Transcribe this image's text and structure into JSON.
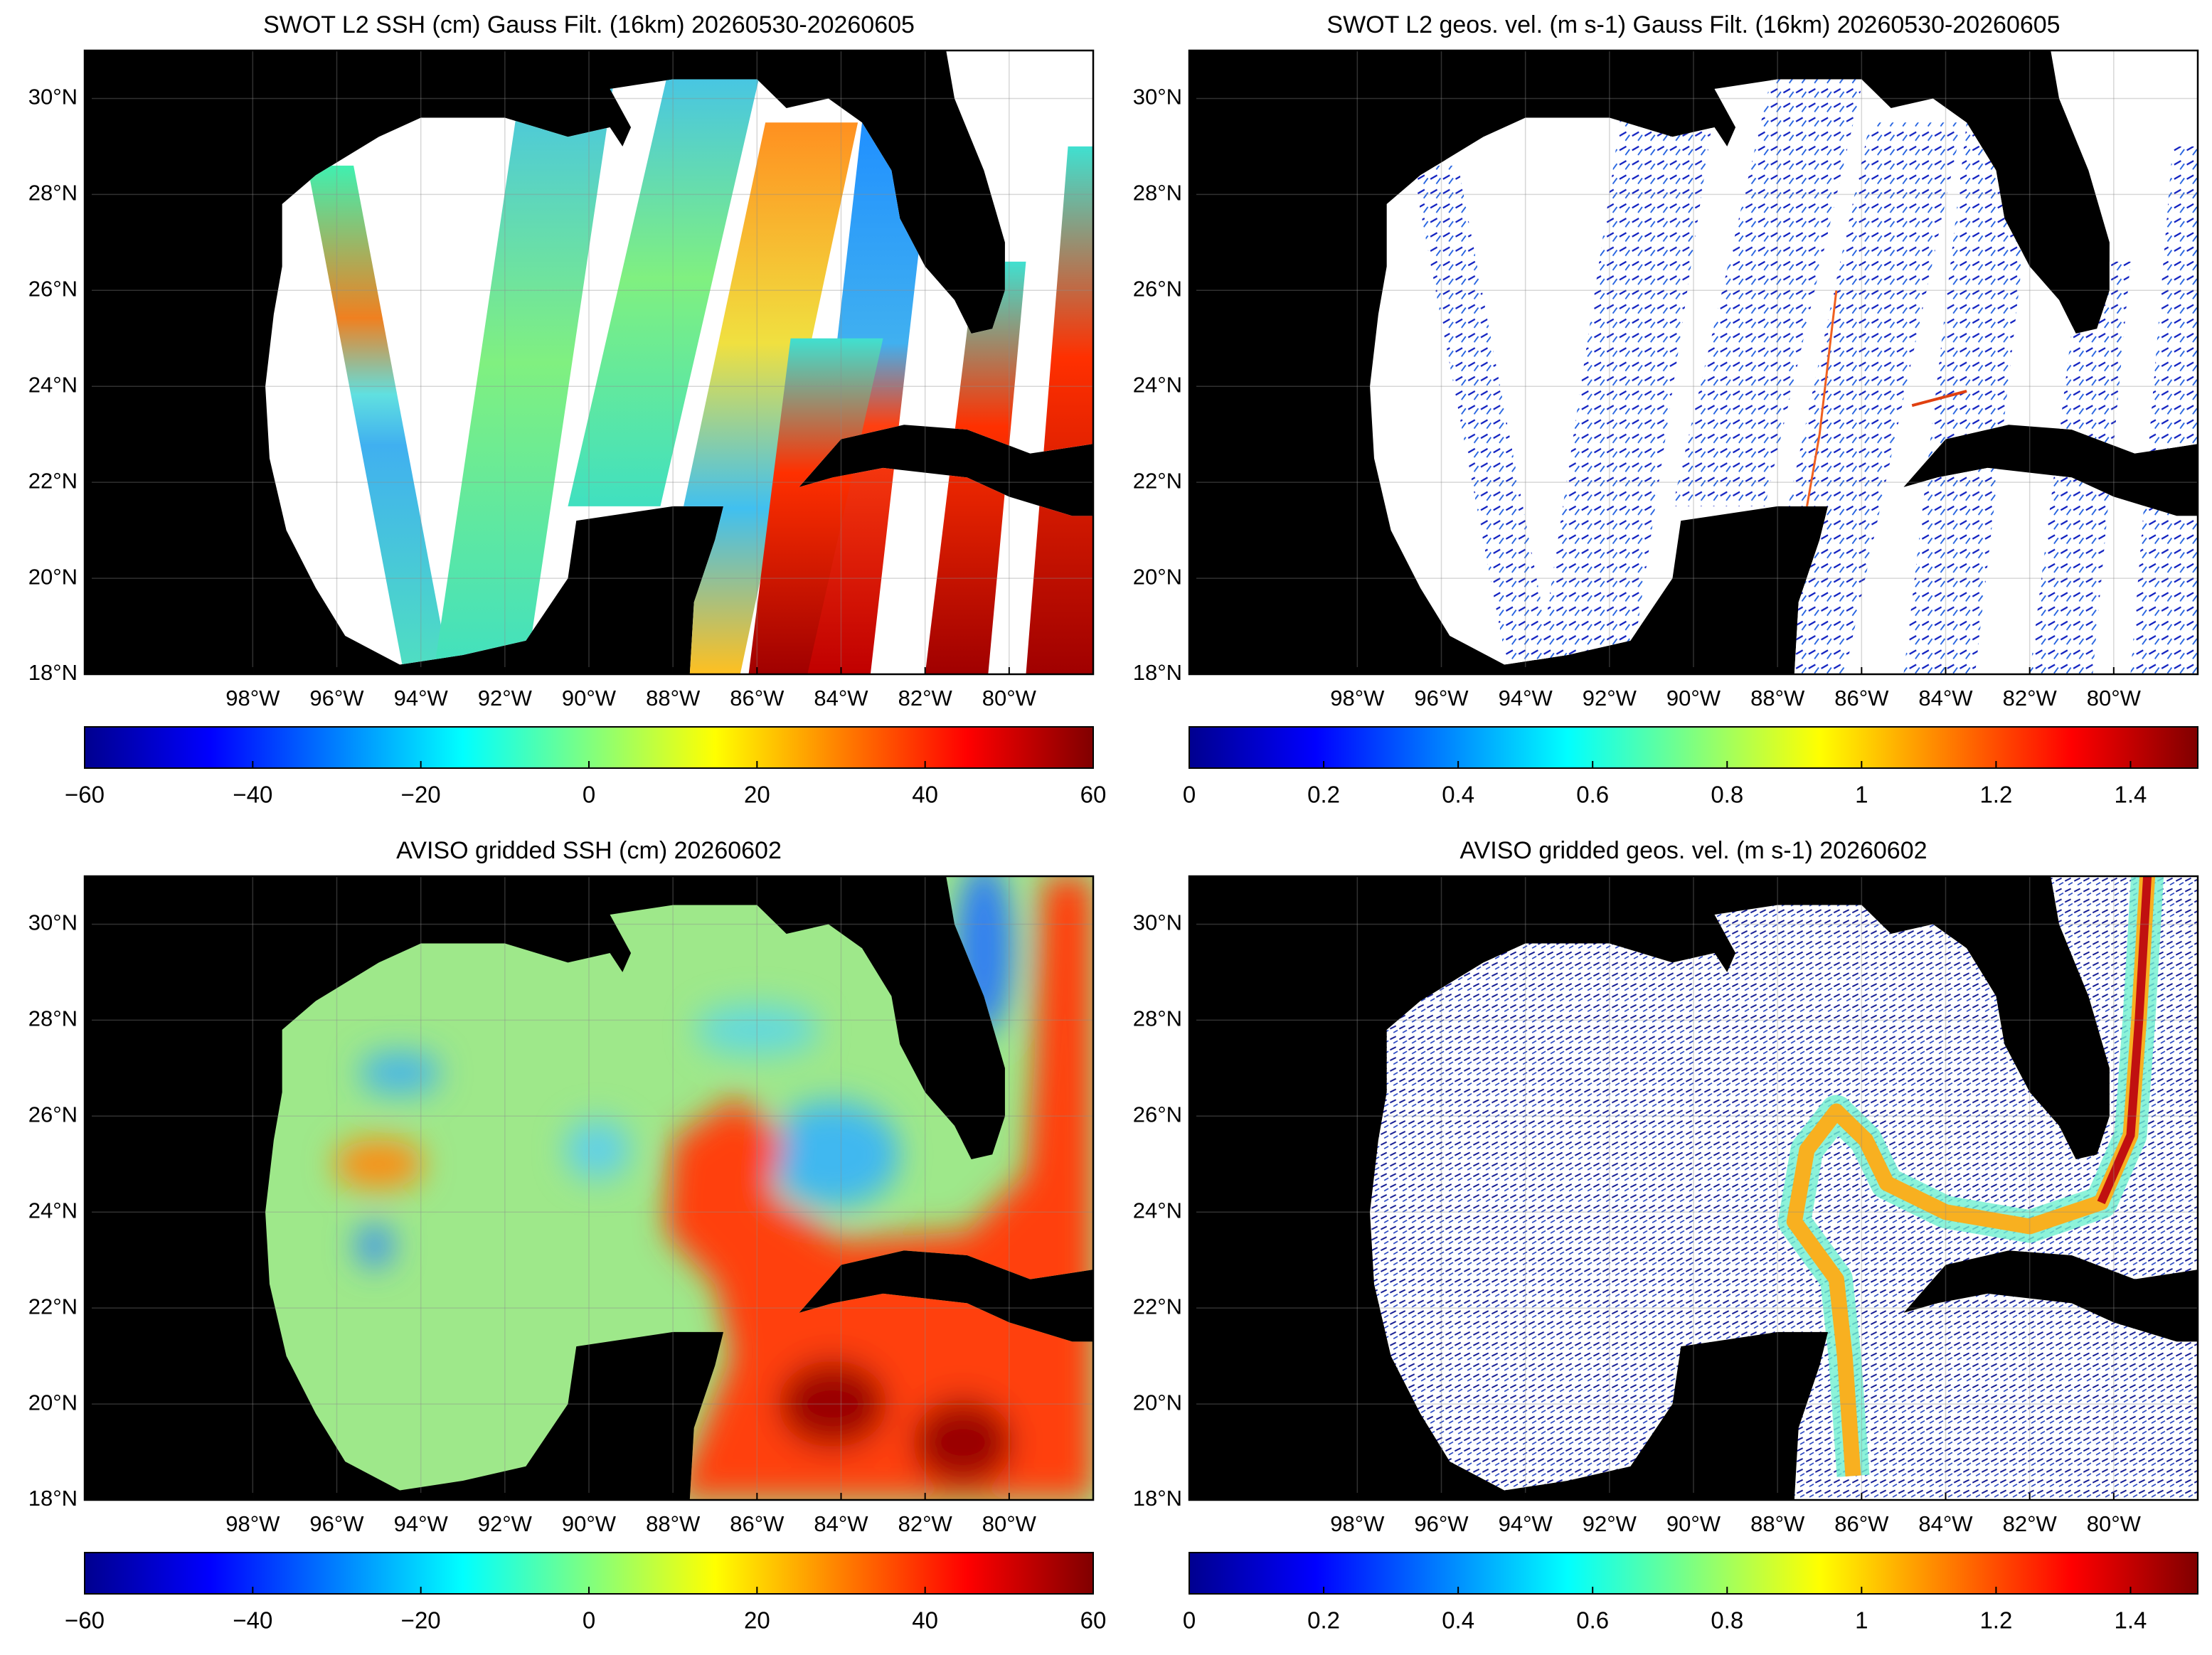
{
  "panels": [
    {
      "title": "SWOT L2 SSH (cm) Gauss Filt. (16km) 20260530-20260605",
      "xlim": [
        -102,
        -78
      ],
      "ylim": [
        18,
        31
      ],
      "xticks": [
        {
          "value": -98,
          "label": "98°W"
        },
        {
          "value": -96,
          "label": "96°W"
        },
        {
          "value": -94,
          "label": "94°W"
        },
        {
          "value": -92,
          "label": "92°W"
        },
        {
          "value": -90,
          "label": "90°W"
        },
        {
          "value": -88,
          "label": "88°W"
        },
        {
          "value": -86,
          "label": "86°W"
        },
        {
          "value": -84,
          "label": "84°W"
        },
        {
          "value": -82,
          "label": "82°W"
        },
        {
          "value": -80,
          "label": "80°W"
        }
      ],
      "yticks": [
        {
          "value": 18,
          "label": "18°N"
        },
        {
          "value": 20,
          "label": "20°N"
        },
        {
          "value": 22,
          "label": "22°N"
        },
        {
          "value": 24,
          "label": "24°N"
        },
        {
          "value": 26,
          "label": "26°N"
        },
        {
          "value": 28,
          "label": "28°N"
        },
        {
          "value": 30,
          "label": "30°N"
        }
      ],
      "colorbar": {
        "lim": [
          -60,
          60
        ],
        "ticks": [
          {
            "value": -60,
            "label": "−60"
          },
          {
            "value": -40,
            "label": "−40"
          },
          {
            "value": -20,
            "label": "−20"
          },
          0,
          20,
          40,
          60
        ]
      }
    },
    {
      "title": "SWOT L2 geos. vel. (m s-1) Gauss Filt. (16km) 20260530-20260605",
      "xlim": [
        -102,
        -78
      ],
      "ylim": [
        18,
        31
      ],
      "xticks": [
        {
          "value": -98,
          "label": "98°W"
        },
        {
          "value": -96,
          "label": "96°W"
        },
        {
          "value": -94,
          "label": "94°W"
        },
        {
          "value": -92,
          "label": "92°W"
        },
        {
          "value": -90,
          "label": "90°W"
        },
        {
          "value": -88,
          "label": "88°W"
        },
        {
          "value": -86,
          "label": "86°W"
        },
        {
          "value": -84,
          "label": "84°W"
        },
        {
          "value": -82,
          "label": "82°W"
        },
        {
          "value": -80,
          "label": "80°W"
        }
      ],
      "yticks": [
        {
          "value": 18,
          "label": "18°N"
        },
        {
          "value": 20,
          "label": "20°N"
        },
        {
          "value": 22,
          "label": "22°N"
        },
        {
          "value": 24,
          "label": "24°N"
        },
        {
          "value": 26,
          "label": "26°N"
        },
        {
          "value": 28,
          "label": "28°N"
        },
        {
          "value": 30,
          "label": "30°N"
        }
      ],
      "colorbar": {
        "lim": [
          0,
          1.5
        ],
        "ticks": [
          0,
          0.2,
          0.4,
          0.6,
          0.8,
          1,
          1.2,
          1.4
        ]
      }
    },
    {
      "title": "AVISO gridded SSH (cm) 20260602",
      "xlim": [
        -102,
        -78
      ],
      "ylim": [
        18,
        31
      ],
      "xticks": [
        {
          "value": -98,
          "label": "98°W"
        },
        {
          "value": -96,
          "label": "96°W"
        },
        {
          "value": -94,
          "label": "94°W"
        },
        {
          "value": -92,
          "label": "92°W"
        },
        {
          "value": -90,
          "label": "90°W"
        },
        {
          "value": -88,
          "label": "88°W"
        },
        {
          "value": -86,
          "label": "86°W"
        },
        {
          "value": -84,
          "label": "84°W"
        },
        {
          "value": -82,
          "label": "82°W"
        },
        {
          "value": -80,
          "label": "80°W"
        }
      ],
      "yticks": [
        {
          "value": 18,
          "label": "18°N"
        },
        {
          "value": 20,
          "label": "20°N"
        },
        {
          "value": 22,
          "label": "22°N"
        },
        {
          "value": 24,
          "label": "24°N"
        },
        {
          "value": 26,
          "label": "26°N"
        },
        {
          "value": 28,
          "label": "28°N"
        },
        {
          "value": 30,
          "label": "30°N"
        }
      ],
      "colorbar": {
        "lim": [
          -60,
          60
        ],
        "ticks": [
          {
            "value": -60,
            "label": "−60"
          },
          {
            "value": -40,
            "label": "−40"
          },
          {
            "value": -20,
            "label": "−20"
          },
          0,
          20,
          40,
          60
        ]
      }
    },
    {
      "title": "AVISO gridded geos. vel. (m s-1)  20260602",
      "xlim": [
        -102,
        -78
      ],
      "ylim": [
        18,
        31
      ],
      "xticks": [
        {
          "value": -98,
          "label": "98°W"
        },
        {
          "value": -96,
          "label": "96°W"
        },
        {
          "value": -94,
          "label": "94°W"
        },
        {
          "value": -92,
          "label": "92°W"
        },
        {
          "value": -90,
          "label": "90°W"
        },
        {
          "value": -88,
          "label": "88°W"
        },
        {
          "value": -86,
          "label": "86°W"
        },
        {
          "value": -84,
          "label": "84°W"
        },
        {
          "value": -82,
          "label": "82°W"
        },
        {
          "value": -80,
          "label": "80°W"
        }
      ],
      "yticks": [
        {
          "value": 18,
          "label": "18°N"
        },
        {
          "value": 20,
          "label": "20°N"
        },
        {
          "value": 22,
          "label": "22°N"
        },
        {
          "value": 24,
          "label": "24°N"
        },
        {
          "value": 26,
          "label": "26°N"
        },
        {
          "value": 28,
          "label": "28°N"
        },
        {
          "value": 30,
          "label": "30°N"
        }
      ],
      "colorbar": {
        "lim": [
          0,
          1.5
        ],
        "ticks": [
          0,
          0.2,
          0.4,
          0.6,
          0.8,
          1,
          1.2,
          1.4
        ]
      }
    }
  ]
}
